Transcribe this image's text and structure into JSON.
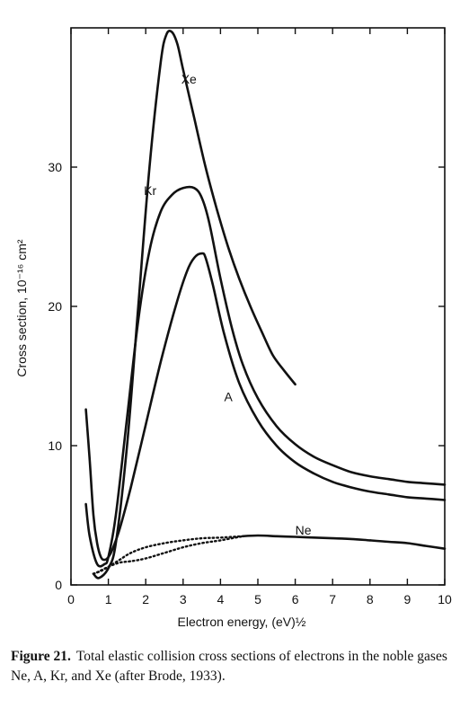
{
  "chart_data": {
    "type": "line",
    "xlabel": "Electron energy, (eV)½",
    "ylabel": "Cross section, 10⁻¹⁶ cm²",
    "xlim": [
      0,
      10
    ],
    "ylim": [
      0,
      40
    ],
    "x_ticks": [
      "0",
      "1",
      "2",
      "3",
      "4",
      "5",
      "6",
      "7",
      "8",
      "9",
      "10"
    ],
    "y_ticks": [
      "0",
      "10",
      "20",
      "30"
    ],
    "grid": false,
    "series": [
      {
        "name": "Xe",
        "x": [
          0.6,
          0.75,
          1.0,
          1.2,
          1.5,
          1.8,
          2.1,
          2.4,
          2.55,
          2.7,
          2.85,
          3.0,
          3.3,
          3.6,
          3.9,
          4.2,
          4.5,
          4.8,
          5.1,
          5.4,
          5.7,
          6.0
        ],
        "y": [
          0.8,
          0.5,
          1.2,
          3.0,
          10.0,
          20.0,
          30.0,
          37.5,
          39.5,
          39.7,
          38.8,
          37.0,
          33.5,
          30.0,
          27.0,
          24.3,
          22.0,
          20.0,
          18.2,
          16.5,
          15.4,
          14.4
        ]
      },
      {
        "name": "Kr",
        "x": [
          0.4,
          0.5,
          0.7,
          0.9,
          1.0,
          1.2,
          1.5,
          1.8,
          2.1,
          2.4,
          2.7,
          3.0,
          3.3,
          3.5,
          3.7,
          4.0,
          4.3,
          4.6,
          5.0,
          5.5,
          6.0,
          6.5,
          7.0,
          7.5,
          8.0,
          8.5,
          9.0,
          9.5,
          10.0
        ],
        "y": [
          5.8,
          3.5,
          1.5,
          1.5,
          2.0,
          5.0,
          12.0,
          19.0,
          24.0,
          26.8,
          28.0,
          28.5,
          28.5,
          27.8,
          26.0,
          22.0,
          18.5,
          15.8,
          13.4,
          11.4,
          10.1,
          9.2,
          8.6,
          8.1,
          7.8,
          7.6,
          7.4,
          7.3,
          7.2
        ]
      },
      {
        "name": "A",
        "x": [
          0.4,
          0.5,
          0.6,
          0.7,
          0.8,
          0.9,
          1.0,
          1.1,
          1.3,
          1.6,
          2.0,
          2.4,
          2.8,
          3.1,
          3.3,
          3.5,
          3.6,
          3.8,
          4.1,
          4.5,
          5.0,
          5.5,
          6.0,
          6.5,
          7.0,
          7.5,
          8.0,
          8.5,
          9.0,
          9.5,
          10.0
        ],
        "y": [
          12.6,
          9.0,
          5.0,
          3.0,
          2.0,
          1.8,
          2.0,
          2.5,
          4.0,
          7.0,
          11.5,
          16.0,
          20.0,
          22.5,
          23.5,
          23.8,
          23.5,
          21.5,
          18.0,
          14.5,
          11.8,
          10.0,
          8.8,
          8.0,
          7.4,
          7.0,
          6.7,
          6.5,
          6.3,
          6.2,
          6.1
        ]
      },
      {
        "name": "Ne",
        "x": [
          4.6,
          5.0,
          5.5,
          6.0,
          6.5,
          7.0,
          7.5,
          8.0,
          8.5,
          9.0,
          9.5,
          10.0
        ],
        "y": [
          3.5,
          3.55,
          3.5,
          3.45,
          3.4,
          3.35,
          3.3,
          3.2,
          3.1,
          3.0,
          2.8,
          2.6
        ]
      }
    ],
    "dotted_series": [
      {
        "name": "Ne (dotted, upper)",
        "x": [
          0.6,
          0.8,
          1.0,
          1.3,
          1.6,
          2.0,
          2.5,
          3.0,
          3.5,
          4.0,
          4.6
        ],
        "y": [
          0.8,
          1.0,
          1.3,
          1.8,
          2.3,
          2.7,
          3.0,
          3.2,
          3.35,
          3.4,
          3.5
        ]
      },
      {
        "name": "Ne (dotted, lower)",
        "x": [
          0.7,
          1.0,
          1.3,
          1.6,
          2.0,
          2.5,
          3.0,
          3.5,
          4.0,
          4.6
        ],
        "y": [
          0.9,
          1.3,
          1.6,
          1.7,
          1.9,
          2.3,
          2.7,
          3.0,
          3.2,
          3.5
        ]
      }
    ],
    "annotations": [
      {
        "label": "Xe",
        "x": 2.95,
        "y": 36.0
      },
      {
        "label": "Kr",
        "x": 1.95,
        "y": 28.0
      },
      {
        "label": "A",
        "x": 4.1,
        "y": 13.2
      },
      {
        "label": "Ne",
        "x": 6.0,
        "y": 3.6
      }
    ]
  },
  "caption": {
    "figure_label": "Figure 21.",
    "text": "Total elastic collision cross sections of electrons in the noble gases Ne, A, Kr, and Xe (after Brode, 1933)."
  }
}
